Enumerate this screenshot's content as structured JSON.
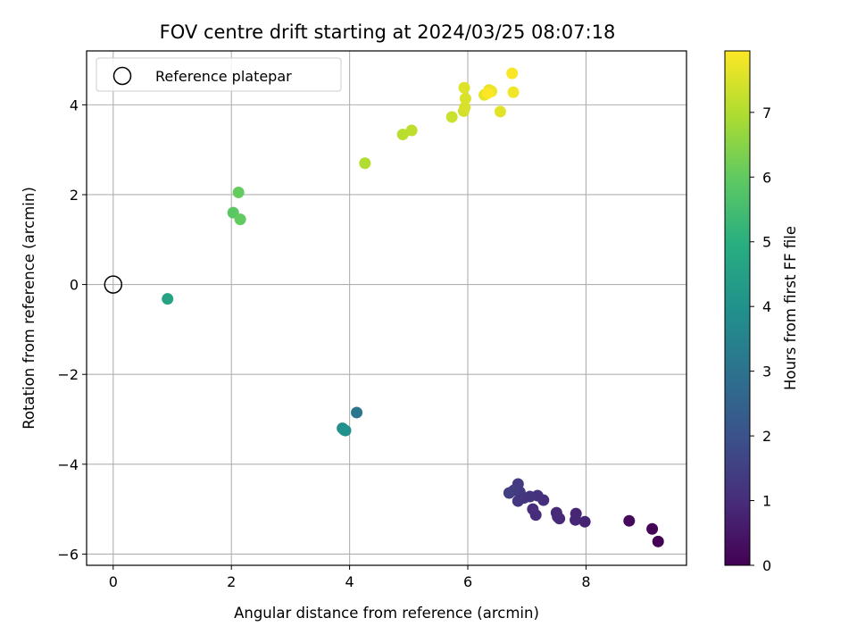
{
  "chart_data": {
    "type": "scatter",
    "title": "FOV centre drift starting at 2024/03/25 08:07:18",
    "xlabel": "Angular distance from reference (arcmin)",
    "ylabel": "Rotation from reference (arcmin)",
    "xlim": [
      -0.45,
      9.7
    ],
    "ylim": [
      -6.25,
      5.2
    ],
    "xticks": [
      0,
      2,
      4,
      6,
      8
    ],
    "yticks": [
      -6,
      -4,
      -2,
      0,
      2,
      4
    ],
    "grid": true,
    "legend": {
      "position": "top-left",
      "entries": [
        "Reference platepar"
      ]
    },
    "reference_point": {
      "x": 0,
      "y": 0,
      "marker": "open-circle"
    },
    "colorbar": {
      "label": "Hours from first FF file",
      "range": [
        0,
        7.95
      ],
      "ticks": [
        0,
        1,
        2,
        3,
        4,
        5,
        6,
        7
      ],
      "colormap": "viridis"
    },
    "points": [
      {
        "x": 9.22,
        "y": -5.72,
        "c": 0.0
      },
      {
        "x": 9.12,
        "y": -5.44,
        "c": 0.1
      },
      {
        "x": 8.73,
        "y": -5.26,
        "c": 0.2
      },
      {
        "x": 7.98,
        "y": -5.28,
        "c": 0.8
      },
      {
        "x": 7.83,
        "y": -5.1,
        "c": 0.85
      },
      {
        "x": 7.82,
        "y": -5.24,
        "c": 0.85
      },
      {
        "x": 7.55,
        "y": -5.21,
        "c": 0.9
      },
      {
        "x": 7.5,
        "y": -5.08,
        "c": 0.9
      },
      {
        "x": 7.52,
        "y": -5.17,
        "c": 0.95
      },
      {
        "x": 7.15,
        "y": -5.13,
        "c": 1.0
      },
      {
        "x": 7.1,
        "y": -5.0,
        "c": 1.0
      },
      {
        "x": 7.28,
        "y": -4.8,
        "c": 1.05
      },
      {
        "x": 7.18,
        "y": -4.7,
        "c": 1.1
      },
      {
        "x": 7.05,
        "y": -4.72,
        "c": 1.15
      },
      {
        "x": 6.95,
        "y": -4.75,
        "c": 1.2
      },
      {
        "x": 6.85,
        "y": -4.82,
        "c": 1.25
      },
      {
        "x": 6.88,
        "y": -4.62,
        "c": 1.3
      },
      {
        "x": 6.85,
        "y": -4.44,
        "c": 1.35
      },
      {
        "x": 6.78,
        "y": -4.58,
        "c": 1.4
      },
      {
        "x": 6.7,
        "y": -4.64,
        "c": 1.45
      },
      {
        "x": 4.12,
        "y": -2.85,
        "c": 3.1
      },
      {
        "x": 3.93,
        "y": -3.25,
        "c": 3.8
      },
      {
        "x": 3.88,
        "y": -3.2,
        "c": 3.9
      },
      {
        "x": 3.91,
        "y": -3.24,
        "c": 4.0
      },
      {
        "x": 0.92,
        "y": -0.32,
        "c": 4.6
      },
      {
        "x": 2.03,
        "y": 1.6,
        "c": 5.9
      },
      {
        "x": 2.15,
        "y": 1.45,
        "c": 6.0
      },
      {
        "x": 2.12,
        "y": 2.05,
        "c": 6.05
      },
      {
        "x": 4.26,
        "y": 2.7,
        "c": 7.0
      },
      {
        "x": 4.9,
        "y": 3.34,
        "c": 7.1
      },
      {
        "x": 5.05,
        "y": 3.43,
        "c": 7.15
      },
      {
        "x": 5.73,
        "y": 3.73,
        "c": 7.3
      },
      {
        "x": 5.93,
        "y": 3.86,
        "c": 7.4
      },
      {
        "x": 5.95,
        "y": 3.94,
        "c": 7.45
      },
      {
        "x": 5.96,
        "y": 4.14,
        "c": 7.5
      },
      {
        "x": 5.94,
        "y": 4.38,
        "c": 7.55
      },
      {
        "x": 6.55,
        "y": 3.85,
        "c": 7.6
      },
      {
        "x": 6.28,
        "y": 4.22,
        "c": 7.65
      },
      {
        "x": 6.36,
        "y": 4.33,
        "c": 7.7
      },
      {
        "x": 6.4,
        "y": 4.3,
        "c": 7.75
      },
      {
        "x": 6.77,
        "y": 4.28,
        "c": 7.8
      },
      {
        "x": 6.75,
        "y": 4.7,
        "c": 7.9
      },
      {
        "x": 6.34,
        "y": 4.26,
        "c": 7.95
      }
    ]
  }
}
